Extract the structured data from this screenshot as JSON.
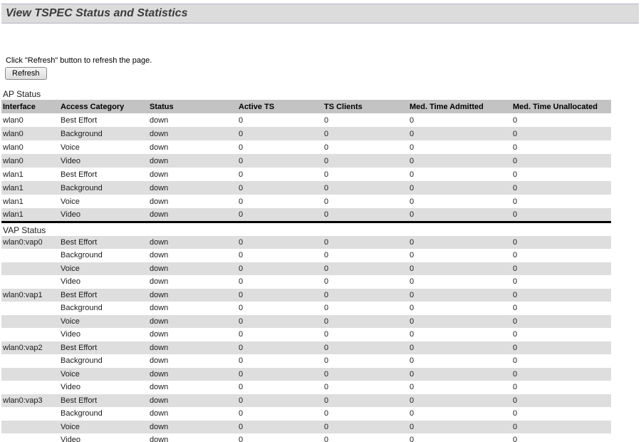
{
  "header": {
    "title": "View TSPEC Status and Statistics"
  },
  "refresh": {
    "instruction": "Click \"Refresh\" button to refresh the page.",
    "button_label": "Refresh"
  },
  "ap_table": {
    "label": "AP Status",
    "columns": [
      "Interface",
      "Access Category",
      "Status",
      "Active TS",
      "TS Clients",
      "Med. Time Admitted",
      "Med. Time Unallocated"
    ],
    "rows": [
      [
        "wlan0",
        "Best Effort",
        "down",
        "0",
        "0",
        "0",
        "0"
      ],
      [
        "wlan0",
        "Background",
        "down",
        "0",
        "0",
        "0",
        "0"
      ],
      [
        "wlan0",
        "Voice",
        "down",
        "0",
        "0",
        "0",
        "0"
      ],
      [
        "wlan0",
        "Video",
        "down",
        "0",
        "0",
        "0",
        "0"
      ],
      [
        "wlan1",
        "Best Effort",
        "down",
        "0",
        "0",
        "0",
        "0"
      ],
      [
        "wlan1",
        "Background",
        "down",
        "0",
        "0",
        "0",
        "0"
      ],
      [
        "wlan1",
        "Voice",
        "down",
        "0",
        "0",
        "0",
        "0"
      ],
      [
        "wlan1",
        "Video",
        "down",
        "0",
        "0",
        "0",
        "0"
      ]
    ]
  },
  "vap_table": {
    "label": "VAP Status",
    "rows": [
      [
        "wlan0:vap0",
        "Best Effort",
        "down",
        "0",
        "0",
        "0",
        "0"
      ],
      [
        "",
        "Background",
        "down",
        "0",
        "0",
        "0",
        "0"
      ],
      [
        "",
        "Voice",
        "down",
        "0",
        "0",
        "0",
        "0"
      ],
      [
        "",
        "Video",
        "down",
        "0",
        "0",
        "0",
        "0"
      ],
      [
        "wlan0:vap1",
        "Best Effort",
        "down",
        "0",
        "0",
        "0",
        "0"
      ],
      [
        "",
        "Background",
        "down",
        "0",
        "0",
        "0",
        "0"
      ],
      [
        "",
        "Voice",
        "down",
        "0",
        "0",
        "0",
        "0"
      ],
      [
        "",
        "Video",
        "down",
        "0",
        "0",
        "0",
        "0"
      ],
      [
        "wlan0:vap2",
        "Best Effort",
        "down",
        "0",
        "0",
        "0",
        "0"
      ],
      [
        "",
        "Background",
        "down",
        "0",
        "0",
        "0",
        "0"
      ],
      [
        "",
        "Voice",
        "down",
        "0",
        "0",
        "0",
        "0"
      ],
      [
        "",
        "Video",
        "down",
        "0",
        "0",
        "0",
        "0"
      ],
      [
        "wlan0:vap3",
        "Best Effort",
        "down",
        "0",
        "0",
        "0",
        "0"
      ],
      [
        "",
        "Background",
        "down",
        "0",
        "0",
        "0",
        "0"
      ],
      [
        "",
        "Voice",
        "down",
        "0",
        "0",
        "0",
        "0"
      ],
      [
        "",
        "Video",
        "down",
        "0",
        "0",
        "0",
        "0"
      ]
    ]
  },
  "colors": {
    "title_bar_bg": "#dcdcdc",
    "title_bar_border": "#b3b3c6",
    "table_header_bg": "#c3c3c3",
    "row_alt_bg": "#dedede",
    "section_divider": "#000000"
  }
}
